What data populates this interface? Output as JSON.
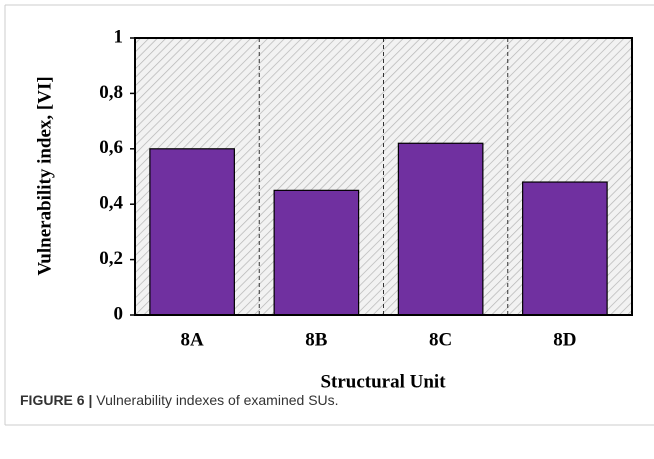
{
  "chart_data": {
    "type": "bar",
    "categories": [
      "8A",
      "8B",
      "8C",
      "8D"
    ],
    "values": [
      0.6,
      0.45,
      0.62,
      0.48
    ],
    "color": "#7030a0",
    "xlabel": "Structural Unit",
    "ylabel": "Vulnerability index, [VI]",
    "ylim": [
      0,
      1
    ],
    "yticks": [
      0,
      {
        "value": 0.2,
        "label": "0,2"
      },
      {
        "value": 0.4,
        "label": "0,4"
      },
      {
        "value": 0.6,
        "label": "0,6"
      },
      {
        "value": 0.8,
        "label": "0,8"
      },
      1
    ],
    "caption_label": "FIGURE 6 |",
    "caption": "Vulnerability indexes of examined SUs."
  }
}
